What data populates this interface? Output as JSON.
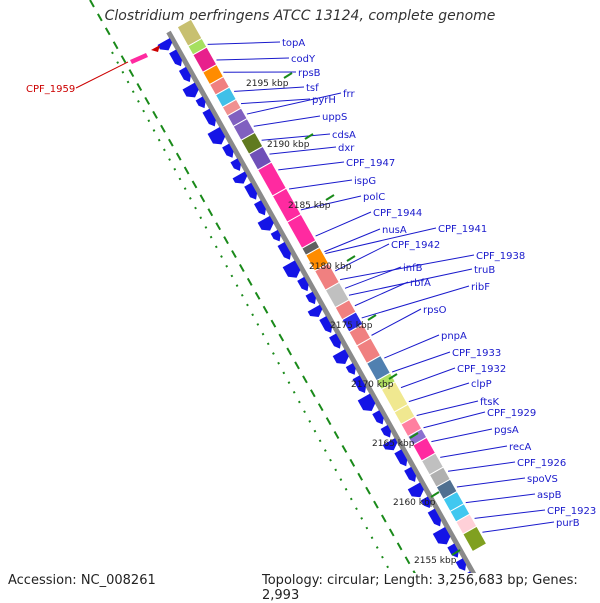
{
  "title": "Clostridium perfringens ATCC 13124, complete genome",
  "accession": "Accession: NC_008261",
  "topology": "Topology: circular; Length: 3,256,683 bp; Genes: 2,993",
  "colors": {
    "label": "#1a1acc",
    "highlight": "#cc0000",
    "gene": "#1414e6",
    "tick": "#1a8a1a"
  },
  "highlight_label": "CPF_1959",
  "kbp_marks": [
    "2195 kbp",
    "2190 kbp",
    "2185 kbp",
    "2180 kbp",
    "2175 kbp",
    "2170 kbp",
    "2165 kbp",
    "2160 kbp",
    "2155 kbp"
  ],
  "gene_labels": [
    "topA",
    "codY",
    "rpsB",
    "tsf",
    "pyrH",
    "frr",
    "uppS",
    "cdsA",
    "dxr",
    "CPF_1947",
    "ispG",
    "polC",
    "CPF_1944",
    "nusA",
    "CPF_1941",
    "CPF_1942",
    "CPF_1938",
    "infB",
    "truB",
    "rbfA",
    "ribF",
    "rpsO",
    "pnpA",
    "CPF_1933",
    "CPF_1932",
    "clpP",
    "ftsK",
    "CPF_1929",
    "pgsA",
    "recA",
    "CPF_1926",
    "spoVS",
    "aspB",
    "CPF_1923",
    "purB"
  ]
}
